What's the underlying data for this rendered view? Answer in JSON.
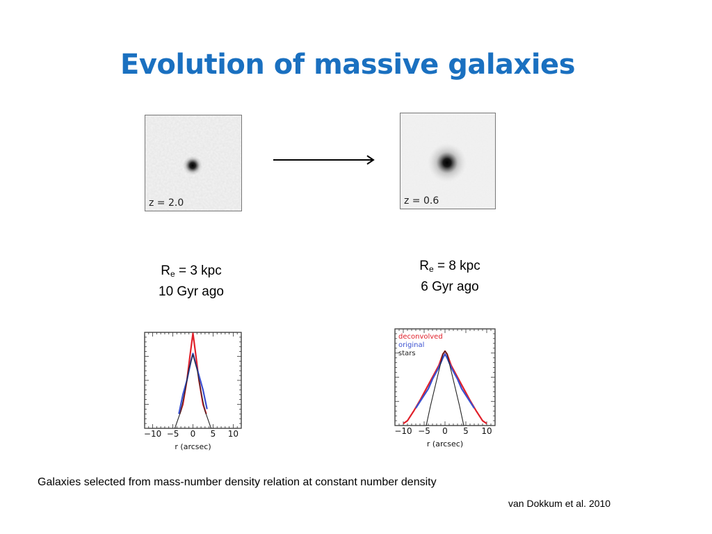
{
  "slide": {
    "title": "Evolution of massive galaxies",
    "footnote": "Galaxies selected from mass-number density relation at constant number density",
    "citation": "van Dokkum et al. 2010"
  },
  "galaxies": [
    {
      "z_label": "z = 2.0",
      "re_symbol": "R",
      "re_sub": "e",
      "re_value": " = 3 kpc",
      "age": "10 Gyr ago"
    },
    {
      "z_label": "z = 0.6",
      "re_symbol": "R",
      "re_sub": "e",
      "re_value": " = 8 kpc",
      "age": "6 Gyr ago"
    }
  ],
  "colors": {
    "title": "#1a70c0",
    "deconvolved": "#e0202a",
    "original": "#3a50d0",
    "stars": "#222222"
  },
  "chart_data": [
    {
      "type": "line",
      "xlabel": "r (arcsec)",
      "xlim": [
        -12,
        12
      ],
      "ylim": [
        0,
        1
      ],
      "xticks": [
        -10,
        -5,
        0,
        5,
        10
      ],
      "grid": false,
      "series": [
        {
          "color": "#e0202a",
          "x": [
            -3.3,
            -2.5,
            -1.5,
            -0.6,
            0,
            0.6,
            1.5,
            2.5,
            3.3
          ],
          "values": [
            0.15,
            0.25,
            0.5,
            0.8,
            0.99,
            0.8,
            0.5,
            0.25,
            0.15
          ]
        },
        {
          "color": "#3a50d0",
          "x": [
            -3.5,
            -2.5,
            -1.5,
            -0.5,
            0,
            0.5,
            1.5,
            2.5,
            3.5
          ],
          "values": [
            0.15,
            0.35,
            0.5,
            0.7,
            0.78,
            0.7,
            0.55,
            0.4,
            0.2
          ]
        },
        {
          "color": "#222222",
          "x": [
            -4.5,
            -3,
            -2,
            -1,
            0,
            1,
            2,
            3,
            4.5
          ],
          "values": [
            0.0,
            0.18,
            0.38,
            0.62,
            0.77,
            0.62,
            0.38,
            0.18,
            0.0
          ]
        }
      ]
    },
    {
      "type": "line",
      "xlabel": "r (arcsec)",
      "xlim": [
        -12,
        12
      ],
      "ylim": [
        0,
        1
      ],
      "xticks": [
        -10,
        -5,
        0,
        5,
        10
      ],
      "grid": false,
      "legend": {
        "position": "top-left",
        "entries": [
          "deconvolved",
          "original",
          "stars"
        ]
      },
      "series": [
        {
          "name": "deconvolved",
          "color": "#e0202a",
          "x": [
            -10,
            -9,
            -7.5,
            -6,
            -4.5,
            -3,
            -1.5,
            -0.5,
            0,
            0.5,
            1.5,
            3,
            4.5,
            6,
            7.5,
            9,
            10
          ],
          "values": [
            0.02,
            0.05,
            0.15,
            0.26,
            0.38,
            0.5,
            0.62,
            0.74,
            0.77,
            0.74,
            0.62,
            0.5,
            0.38,
            0.26,
            0.15,
            0.05,
            0.02
          ]
        },
        {
          "name": "original",
          "color": "#3a50d0",
          "x": [
            -7,
            -5.5,
            -4,
            -3,
            -1.5,
            -0.5,
            0,
            0.5,
            1.5,
            3,
            4,
            5.5,
            7
          ],
          "values": [
            0.18,
            0.28,
            0.38,
            0.48,
            0.6,
            0.7,
            0.74,
            0.7,
            0.6,
            0.48,
            0.38,
            0.28,
            0.18
          ]
        },
        {
          "name": "stars",
          "color": "#222222",
          "x": [
            -4.5,
            -3.5,
            -2.5,
            -1.5,
            -0.5,
            0,
            0.5,
            1.5,
            2.5,
            3.5,
            4.5
          ],
          "values": [
            0.0,
            0.2,
            0.38,
            0.56,
            0.74,
            0.77,
            0.74,
            0.56,
            0.38,
            0.2,
            0.0
          ]
        }
      ]
    }
  ]
}
